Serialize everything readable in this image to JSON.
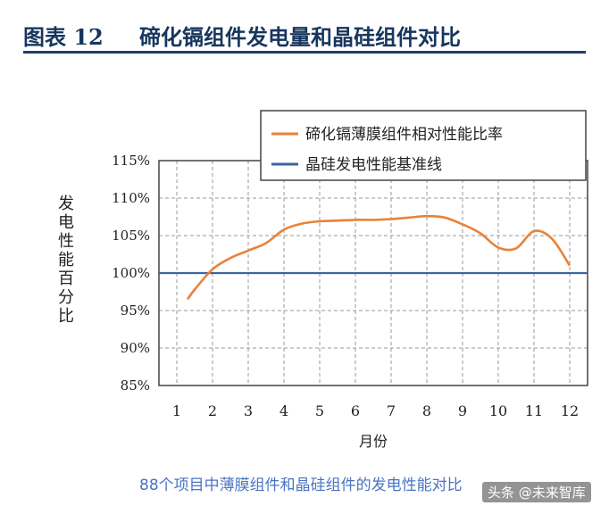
{
  "header": {
    "figure_label": "图表 12",
    "figure_title": "碲化镉组件发电量和晶硅组件对比"
  },
  "caption": "88个项目中薄膜组件和晶硅组件的发电性能对比",
  "watermark": "头条 @未来智库",
  "colors": {
    "thin_film": "#e8823a",
    "baseline": "#3c64a0",
    "grid": "#9a9a9a",
    "header": "#17365d"
  },
  "chart_data": {
    "type": "line",
    "x": [
      1.3,
      1.5,
      2,
      2.5,
      3,
      3.5,
      4,
      4.5,
      5,
      5.5,
      6,
      6.5,
      7,
      7.5,
      8,
      8.5,
      9,
      9.5,
      10,
      10.5,
      11,
      11.5,
      12
    ],
    "series": [
      {
        "name": "碲化镉薄膜组件相对性能比率",
        "values": [
          96.5,
          97.8,
          100.5,
          102.0,
          103.0,
          104.0,
          105.8,
          106.6,
          106.9,
          107.0,
          107.1,
          107.1,
          107.2,
          107.4,
          107.6,
          107.4,
          106.5,
          105.3,
          103.4,
          103.3,
          105.6,
          104.6,
          101.0
        ]
      },
      {
        "name": "晶硅发电性能基准线",
        "values": [
          100,
          100,
          100,
          100,
          100,
          100,
          100,
          100,
          100,
          100,
          100,
          100,
          100,
          100,
          100,
          100,
          100,
          100,
          100,
          100,
          100,
          100,
          100
        ]
      }
    ],
    "x_ticks": [
      "1",
      "2",
      "3",
      "4",
      "5",
      "6",
      "7",
      "8",
      "9",
      "10",
      "11",
      "12"
    ],
    "y_ticks": [
      "85%",
      "90%",
      "95%",
      "100%",
      "105%",
      "110%",
      "115%"
    ],
    "xlabel": "月份",
    "ylabel": "发电性能百分比",
    "xlim": [
      0.5,
      12.5
    ],
    "ylim": [
      85,
      115
    ],
    "grid": true,
    "legend_position": "top-right"
  }
}
